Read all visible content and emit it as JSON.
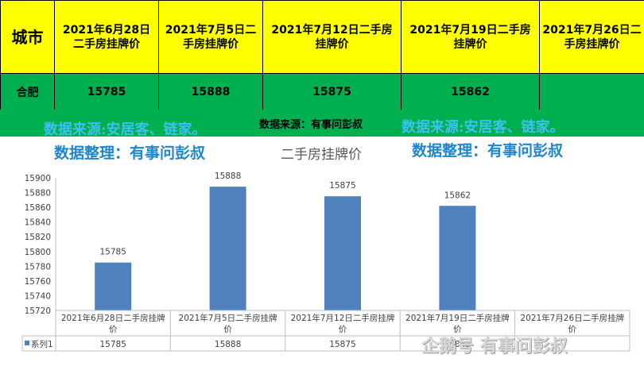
{
  "table": {
    "header_city": "城市",
    "headers": [
      "2021年6月28日二手房挂牌价",
      "2021年7月5日二手房挂牌价",
      "2021年7月12日二手房挂牌价",
      "2021年7月19日二手房挂牌价",
      "2021年7月26日二手房挂牌价"
    ],
    "header_lines": [
      [
        "2021年6月28日",
        "二手房挂牌价"
      ],
      [
        "2021年7月5日二",
        "手房挂牌价"
      ],
      [
        "2021年7月12日二手房",
        "挂牌价"
      ],
      [
        "2021年7月19日二手房",
        "挂牌价"
      ],
      [
        "2021年7月26日二",
        "手房挂牌价"
      ]
    ],
    "row_city": "合肥",
    "row_values": [
      "15785",
      "15888",
      "15875",
      "15862",
      ""
    ]
  },
  "sources": {
    "center": "数据来源：有事问彭叔",
    "left_source": "数据来源:安居客、链家。",
    "left_compiled": "数据整理：有事问彭叔",
    "right_source": "数据来源:安居客、链家。",
    "right_compiled": "数据整理：有事问彭叔"
  },
  "watermark": "企鹅号 有事问彭叔",
  "colors": {
    "header_bg": "#ffff00",
    "row_bg": "#00b050",
    "bar": "#4f81bd",
    "watermark_blue": "#3fc0f0"
  },
  "chart_data": {
    "type": "bar",
    "title": "二手房挂牌价",
    "categories": [
      [
        "2021年6月28日二手房挂牌",
        "价"
      ],
      [
        "2021年7月5日二手房挂牌",
        "价"
      ],
      [
        "2021年7月12日二手房挂牌",
        "价"
      ],
      [
        "2021年7月19日二手房挂牌",
        "价"
      ],
      [
        "2021年7月26日二手房挂牌",
        "价"
      ]
    ],
    "series": [
      {
        "name": "系列1",
        "values": [
          15785,
          15888,
          15875,
          15862,
          null
        ]
      }
    ],
    "data_table_values": [
      "15785",
      "15888",
      "15875",
      "15862",
      ""
    ],
    "ylim": [
      15720,
      15900
    ],
    "yticks": [
      15720,
      15740,
      15760,
      15780,
      15800,
      15820,
      15840,
      15860,
      15880,
      15900
    ],
    "grid": false,
    "legend": "data-table"
  }
}
